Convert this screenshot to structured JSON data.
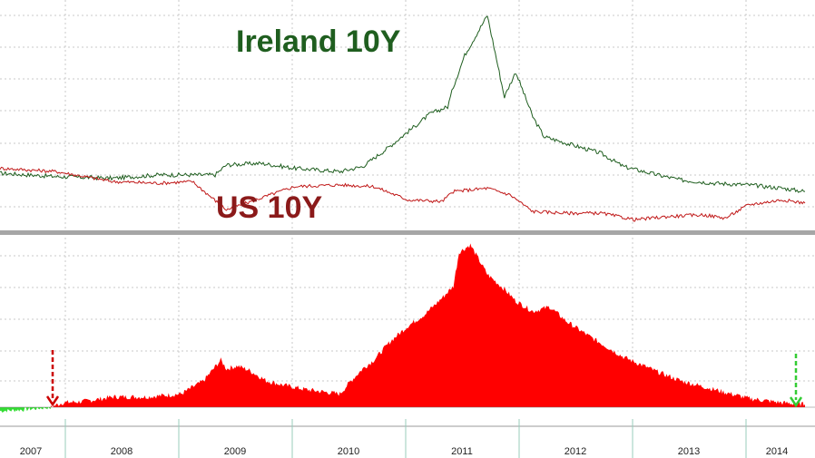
{
  "colors": {
    "ireland": "#1f5e1f",
    "us": "#c01818",
    "spread_fill": "#ff0000",
    "spread_negative": "#33dd33",
    "grid": "#c8c8c8",
    "divider": "#a6a6a6",
    "arrow_start": "#cc0000",
    "arrow_end": "#33cc33"
  },
  "chart_data": [
    {
      "type": "line",
      "title": "",
      "xlabel": "",
      "ylabel": "",
      "grid": true,
      "x_ticks": [
        "2007",
        "2008",
        "2009",
        "2010",
        "2011",
        "2012",
        "2013",
        "2014"
      ],
      "series": [
        {
          "name": "Ireland 10Y",
          "x": [
            2007.0,
            2007.5,
            2008.0,
            2008.4,
            2008.9,
            2009.0,
            2009.3,
            2009.6,
            2010.0,
            2010.2,
            2010.4,
            2010.6,
            2010.8,
            2010.95,
            2011.0,
            2011.1,
            2011.3,
            2011.45,
            2011.55,
            2011.7,
            2011.8,
            2012.0,
            2012.3,
            2012.5,
            2012.8,
            2013.0,
            2013.3,
            2013.6,
            2013.9,
            2014.1
          ],
          "values": [
            4.4,
            4.2,
            4.1,
            4.3,
            4.3,
            4.9,
            5.0,
            4.7,
            4.5,
            4.8,
            5.8,
            6.9,
            8.0,
            8.4,
            9.6,
            11.5,
            13.9,
            9.0,
            10.5,
            7.8,
            6.6,
            6.2,
            5.6,
            4.8,
            4.3,
            4.0,
            3.8,
            3.7,
            3.5,
            3.3
          ]
        },
        {
          "name": "US 10Y",
          "x": [
            2007.0,
            2007.5,
            2008.0,
            2008.4,
            2008.7,
            2009.0,
            2009.3,
            2009.6,
            2010.0,
            2010.3,
            2010.6,
            2010.9,
            2011.0,
            2011.3,
            2011.5,
            2011.7,
            2012.0,
            2012.3,
            2012.6,
            2012.9,
            2013.2,
            2013.4,
            2013.6,
            2013.9,
            2014.1
          ],
          "values": [
            4.7,
            4.5,
            3.9,
            3.8,
            3.9,
            2.2,
            2.9,
            3.6,
            3.7,
            3.6,
            2.8,
            2.7,
            3.3,
            3.5,
            3.1,
            2.1,
            2.0,
            2.0,
            1.6,
            1.8,
            1.9,
            1.7,
            2.5,
            2.8,
            2.6
          ]
        }
      ]
    },
    {
      "type": "area",
      "title": "",
      "xlabel": "",
      "ylabel": "",
      "grid": true,
      "x_ticks": [
        "2007",
        "2008",
        "2009",
        "2010",
        "2011",
        "2012",
        "2013",
        "2014"
      ],
      "series": [
        {
          "name": "",
          "x": [
            2007.0,
            2007.2,
            2007.45,
            2007.55,
            2007.75,
            2008.0,
            2008.3,
            2008.6,
            2008.8,
            2008.95,
            2009.0,
            2009.1,
            2009.2,
            2009.35,
            2009.5,
            2009.7,
            2010.0,
            2010.1,
            2010.2,
            2010.3,
            2010.45,
            2010.6,
            2010.75,
            2010.9,
            2011.0,
            2011.05,
            2011.15,
            2011.3,
            2011.45,
            2011.55,
            2011.7,
            2011.85,
            2012.0,
            2012.2,
            2012.5,
            2012.8,
            2013.0,
            2013.3,
            2013.6,
            2013.9,
            2014.1
          ],
          "values": [
            -0.3,
            -0.2,
            0.0,
            0.3,
            0.4,
            0.7,
            0.7,
            0.9,
            1.8,
            3.2,
            2.6,
            2.8,
            2.5,
            1.8,
            1.5,
            1.2,
            0.9,
            1.8,
            2.6,
            3.2,
            4.5,
            5.5,
            6.3,
            7.4,
            8.2,
            10.5,
            11.0,
            9.0,
            8.0,
            7.2,
            6.5,
            6.8,
            5.8,
            4.8,
            3.4,
            2.4,
            1.8,
            1.2,
            0.6,
            0.3,
            0.2
          ]
        }
      ]
    }
  ],
  "labels": {
    "ireland": "Ireland 10Y",
    "us": "US 10Y"
  }
}
